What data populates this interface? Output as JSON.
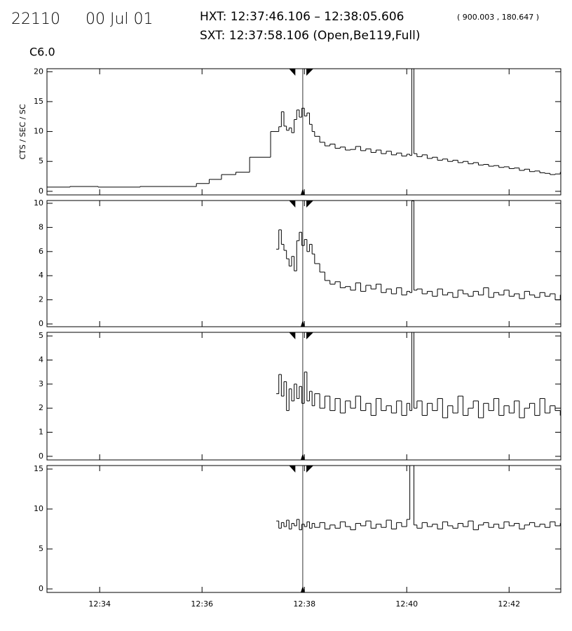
{
  "header": {
    "id": "22110",
    "date": "00 Jul 01",
    "hxt": "HXT: 12:37:46.106 – 12:38:05.606",
    "coords": "( 900.003 , 180.647 )",
    "sxt": "SXT: 12:37:58.106 (Open,Be119,Full)"
  },
  "hxt_range": [
    37.7684,
    38.0934
  ],
  "sxt_time": 37.9684,
  "chart_data": [
    {
      "type": "line",
      "drawstyle": "steps-post",
      "title": "C6.0",
      "y_label": "CTS / SEC / SC",
      "color": "#000000",
      "xlim": [
        32.97,
        43.01
      ],
      "ylim": [
        -0.6,
        20.5
      ],
      "yticks": [
        0,
        5,
        10,
        15,
        20
      ],
      "x": [
        32.97,
        33.42,
        33.97,
        34.79,
        35.34,
        35.89,
        36.14,
        36.38,
        36.66,
        36.93,
        37.34,
        37.5,
        37.55,
        37.6,
        37.65,
        37.7,
        37.75,
        37.8,
        37.85,
        37.9,
        37.95,
        38.0,
        38.05,
        38.1,
        38.15,
        38.2,
        38.3,
        38.4,
        38.5,
        38.6,
        38.7,
        38.8,
        38.9,
        39.0,
        39.1,
        39.2,
        39.3,
        39.4,
        39.5,
        39.6,
        39.7,
        39.8,
        39.9,
        40.0,
        40.06,
        40.1,
        40.14,
        40.2,
        40.3,
        40.4,
        40.5,
        40.6,
        40.7,
        40.8,
        40.9,
        41.0,
        41.1,
        41.2,
        41.3,
        41.4,
        41.5,
        41.6,
        41.7,
        41.8,
        41.9,
        42.0,
        42.1,
        42.2,
        42.3,
        42.4,
        42.5,
        42.6,
        42.7,
        42.8,
        42.9,
        43.0
      ],
      "values": [
        0.7,
        0.8,
        0.7,
        0.8,
        0.8,
        1.3,
        2.0,
        2.8,
        3.2,
        5.7,
        10.0,
        10.8,
        13.3,
        10.9,
        10.2,
        10.6,
        9.8,
        12.0,
        13.6,
        12.4,
        13.9,
        12.6,
        13.1,
        11.2,
        10.0,
        9.2,
        8.2,
        7.6,
        7.9,
        7.2,
        7.4,
        6.9,
        7.0,
        7.5,
        6.8,
        7.1,
        6.5,
        6.9,
        6.3,
        6.7,
        6.1,
        6.4,
        5.9,
        6.2,
        6.0,
        20.5,
        6.3,
        5.8,
        6.1,
        5.5,
        5.7,
        5.2,
        5.4,
        5.0,
        5.2,
        4.8,
        5.0,
        4.6,
        4.8,
        4.4,
        4.5,
        4.2,
        4.3,
        4.0,
        4.1,
        3.8,
        3.9,
        3.5,
        3.7,
        3.3,
        3.4,
        3.1,
        3.0,
        2.8,
        2.9,
        3.2
      ]
    },
    {
      "type": "line",
      "drawstyle": "steps-post",
      "color": "#000000",
      "xlim": [
        32.97,
        43.01
      ],
      "ylim": [
        -0.23,
        10.23
      ],
      "yticks": [
        0,
        2,
        4,
        6,
        8,
        10
      ],
      "x": [
        37.45,
        37.5,
        37.55,
        37.6,
        37.65,
        37.7,
        37.75,
        37.8,
        37.85,
        37.9,
        37.95,
        38.0,
        38.05,
        38.1,
        38.15,
        38.2,
        38.3,
        38.4,
        38.5,
        38.6,
        38.7,
        38.8,
        38.9,
        39.0,
        39.1,
        39.2,
        39.3,
        39.4,
        39.5,
        39.6,
        39.7,
        39.8,
        39.9,
        40.0,
        40.06,
        40.1,
        40.14,
        40.2,
        40.3,
        40.4,
        40.5,
        40.6,
        40.7,
        40.8,
        40.9,
        41.0,
        41.1,
        41.2,
        41.3,
        41.4,
        41.5,
        41.6,
        41.7,
        41.8,
        41.9,
        42.0,
        42.1,
        42.2,
        42.3,
        42.4,
        42.5,
        42.6,
        42.7,
        42.8,
        42.9,
        43.0
      ],
      "values": [
        6.2,
        7.8,
        6.6,
        6.1,
        5.4,
        4.8,
        5.6,
        4.4,
        6.9,
        7.6,
        6.5,
        7.0,
        6.0,
        6.6,
        5.8,
        5.0,
        4.3,
        3.6,
        3.3,
        3.5,
        3.0,
        3.1,
        2.8,
        3.4,
        2.7,
        3.2,
        2.9,
        3.3,
        2.6,
        2.9,
        2.5,
        3.0,
        2.4,
        2.7,
        2.6,
        10.2,
        2.8,
        2.9,
        2.5,
        2.7,
        2.3,
        2.9,
        2.4,
        2.6,
        2.2,
        2.8,
        2.5,
        2.3,
        2.7,
        2.4,
        3.0,
        2.2,
        2.6,
        2.4,
        2.8,
        2.3,
        2.5,
        2.1,
        2.7,
        2.4,
        2.2,
        2.6,
        2.3,
        2.5,
        2.0,
        2.4
      ]
    },
    {
      "type": "line",
      "drawstyle": "steps-post",
      "color": "#000000",
      "xlim": [
        32.97,
        43.01
      ],
      "ylim": [
        -0.15,
        5.15
      ],
      "yticks": [
        0,
        1,
        2,
        3,
        4,
        5
      ],
      "x": [
        37.45,
        37.5,
        37.55,
        37.6,
        37.65,
        37.7,
        37.75,
        37.8,
        37.85,
        37.9,
        37.95,
        38.0,
        38.05,
        38.1,
        38.15,
        38.2,
        38.3,
        38.4,
        38.5,
        38.6,
        38.7,
        38.8,
        38.9,
        39.0,
        39.1,
        39.2,
        39.3,
        39.4,
        39.5,
        39.6,
        39.7,
        39.8,
        39.9,
        40.0,
        40.06,
        40.1,
        40.14,
        40.2,
        40.3,
        40.4,
        40.5,
        40.6,
        40.7,
        40.8,
        40.9,
        41.0,
        41.1,
        41.2,
        41.3,
        41.4,
        41.5,
        41.6,
        41.7,
        41.8,
        41.9,
        42.0,
        42.1,
        42.2,
        42.3,
        42.4,
        42.5,
        42.6,
        42.7,
        42.8,
        42.9,
        43.0
      ],
      "values": [
        2.6,
        3.4,
        2.5,
        3.1,
        1.9,
        2.8,
        2.3,
        3.0,
        2.4,
        2.9,
        2.2,
        3.5,
        2.3,
        2.7,
        2.1,
        2.6,
        2.0,
        2.5,
        1.9,
        2.4,
        1.8,
        2.3,
        2.0,
        2.5,
        1.9,
        2.2,
        1.7,
        2.4,
        1.9,
        2.1,
        1.8,
        2.3,
        1.7,
        2.2,
        1.9,
        5.15,
        2.0,
        2.3,
        1.7,
        2.2,
        1.9,
        2.4,
        1.6,
        2.1,
        1.8,
        2.5,
        1.7,
        2.0,
        2.3,
        1.6,
        2.2,
        1.9,
        2.4,
        1.7,
        2.1,
        1.8,
        2.3,
        1.6,
        2.0,
        2.2,
        1.7,
        2.4,
        1.8,
        2.1,
        1.9,
        1.7
      ]
    },
    {
      "type": "line",
      "drawstyle": "steps-post",
      "color": "#000000",
      "xlim": [
        32.97,
        43.01
      ],
      "ylim": [
        -0.44,
        15.44
      ],
      "yticks": [
        0,
        5,
        10,
        15
      ],
      "xticks": [
        {
          "value": 34,
          "label": "12:34"
        },
        {
          "value": 36,
          "label": "12:36"
        },
        {
          "value": 38,
          "label": "12:38"
        },
        {
          "value": 40,
          "label": "12:40"
        },
        {
          "value": 42,
          "label": "12:42"
        }
      ],
      "x": [
        37.45,
        37.5,
        37.55,
        37.6,
        37.65,
        37.7,
        37.75,
        37.8,
        37.85,
        37.9,
        37.95,
        38.0,
        38.05,
        38.1,
        38.15,
        38.2,
        38.3,
        38.4,
        38.5,
        38.6,
        38.7,
        38.8,
        38.9,
        39.0,
        39.1,
        39.2,
        39.3,
        39.4,
        39.5,
        39.6,
        39.7,
        39.8,
        39.9,
        40.0,
        40.06,
        40.1,
        40.14,
        40.2,
        40.3,
        40.4,
        40.5,
        40.6,
        40.7,
        40.8,
        40.9,
        41.0,
        41.1,
        41.2,
        41.3,
        41.4,
        41.5,
        41.6,
        41.7,
        41.8,
        41.9,
        42.0,
        42.1,
        42.2,
        42.3,
        42.4,
        42.5,
        42.6,
        42.7,
        42.8,
        42.9,
        43.0
      ],
      "values": [
        8.5,
        7.6,
        8.3,
        7.8,
        8.6,
        7.5,
        8.2,
        7.9,
        8.7,
        7.4,
        8.1,
        7.8,
        8.4,
        7.6,
        8.2,
        7.7,
        8.3,
        7.5,
        8.0,
        7.6,
        8.4,
        7.8,
        7.4,
        8.2,
        7.9,
        8.5,
        7.6,
        8.1,
        7.7,
        8.6,
        7.5,
        8.3,
        7.8,
        8.7,
        15.44,
        15.44,
        8.0,
        7.6,
        8.3,
        7.8,
        8.1,
        7.5,
        8.4,
        7.9,
        7.6,
        8.2,
        7.8,
        8.5,
        7.4,
        8.0,
        8.3,
        7.7,
        8.1,
        7.6,
        8.4,
        7.9,
        8.2,
        7.5,
        8.0,
        8.3,
        7.8,
        8.1,
        7.7,
        8.4,
        7.9,
        8.2
      ]
    }
  ]
}
